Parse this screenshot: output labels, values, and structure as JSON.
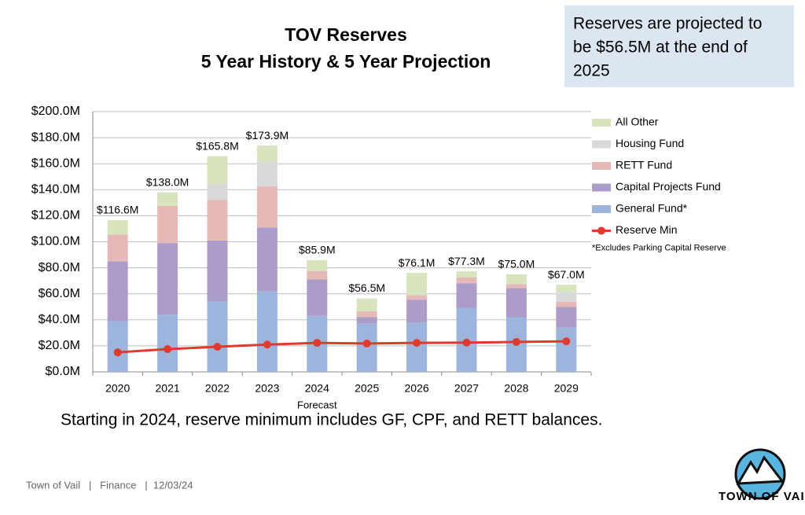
{
  "chart_data": {
    "type": "bar",
    "stacked": true,
    "title": "TOV Reserves",
    "subtitle": "5 Year History & 5 Year Projection",
    "categories": [
      "2020",
      "2021",
      "2022",
      "2023",
      "2024",
      "2025",
      "2026",
      "2027",
      "2028",
      "2029"
    ],
    "series": [
      {
        "name": "General Fund*",
        "color": "#9db5dc",
        "values": [
          39,
          44,
          54,
          62,
          43,
          37,
          38,
          49,
          42,
          34
        ]
      },
      {
        "name": "Capital Projects Fund",
        "color": "#ab9cc9",
        "values": [
          46,
          55,
          47,
          49,
          28,
          5,
          17.5,
          19,
          22.5,
          16
        ]
      },
      {
        "name": "RETT Fund",
        "color": "#e6b9b8",
        "values": [
          20.5,
          28.5,
          31,
          31.5,
          6.5,
          4.5,
          3.5,
          4.5,
          3,
          4
        ]
      },
      {
        "name": "Housing Fund",
        "color": "#d9d9d9",
        "values": [
          0,
          0,
          12.5,
          19,
          0,
          0,
          0,
          0,
          0,
          7.5
        ]
      },
      {
        "name": "All Other",
        "color": "#d7e4bd",
        "values": [
          11.1,
          10.5,
          21.3,
          12.4,
          8.4,
          10,
          17.1,
          4.8,
          7.5,
          5.5
        ]
      }
    ],
    "line_series": {
      "name": "Reserve Min",
      "color": "#e03a2f",
      "values": [
        15,
        17.5,
        19.3,
        21,
        22.3,
        21.8,
        22.3,
        22.5,
        23,
        23.5
      ]
    },
    "totals": {
      "values": [
        116.6,
        138.0,
        165.8,
        173.9,
        85.9,
        56.5,
        76.1,
        77.3,
        75.0,
        67.0
      ],
      "value_labels": [
        "$116.6M",
        "$138.0M",
        "$165.8M",
        "$173.9M",
        "$85.9M",
        "$56.5M",
        "$76.1M",
        "$77.3M",
        "$75.0M",
        "$67.0M"
      ]
    },
    "ylim": [
      0,
      200
    ],
    "yticks": [
      {
        "value": 0,
        "label": "$0.0M"
      },
      {
        "value": 20,
        "label": "$20.0M"
      },
      {
        "value": 40,
        "label": "$40.0M"
      },
      {
        "value": 60,
        "label": "$60.0M"
      },
      {
        "value": 80,
        "label": "$80.0M"
      },
      {
        "value": 100,
        "label": "$100.0M"
      },
      {
        "value": 120,
        "label": "$120.0M"
      },
      {
        "value": 140,
        "label": "$140.0M"
      },
      {
        "value": 160,
        "label": "$160.0M"
      },
      {
        "value": 180,
        "label": "$180.0M"
      },
      {
        "value": 200,
        "label": "$200.0M"
      }
    ],
    "grid": true,
    "legend": "right",
    "x_annotation": "Forecast",
    "legend_note": "*Excludes Parking Capital Reserve",
    "callout": [
      "Reserves are projected to",
      "be $56.5M at the end of",
      "2025"
    ],
    "note": "Starting in 2024, reserve minimum includes GF, CPF, and RETT balances.",
    "footer": "Town of Vail   |   Finance   |  12/03/24",
    "logo": "TOWN OF VAIL"
  }
}
